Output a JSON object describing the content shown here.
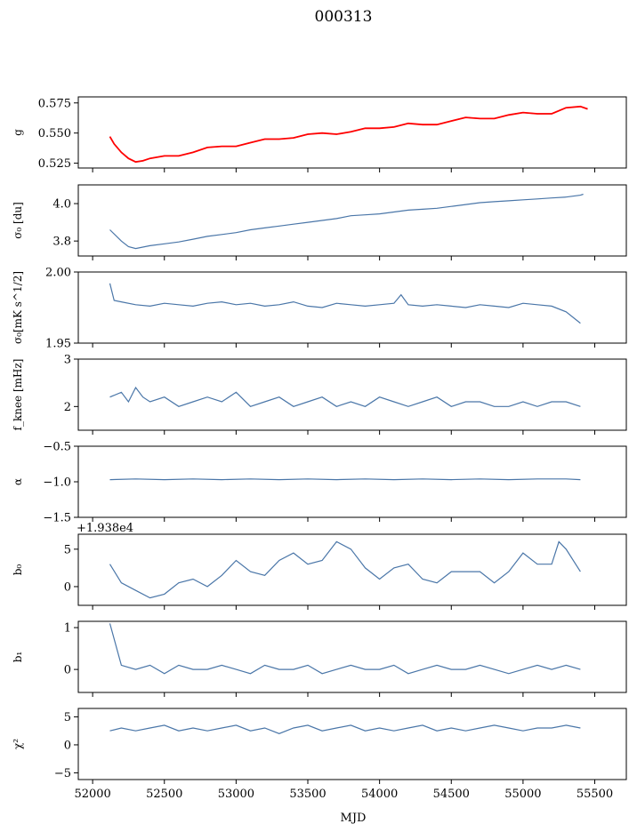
{
  "figure": {
    "title": "000313",
    "xlabel": "MJD"
  },
  "chart_data": [
    {
      "type": "line",
      "key": "g",
      "ylabel": "g",
      "ylim": [
        0.521,
        0.58
      ],
      "yticks": [
        0.525,
        0.55,
        0.575
      ],
      "ytick_labels": [
        "0.525",
        "0.550",
        "0.575"
      ],
      "series": [
        {
          "role": "model",
          "color": "#4a76a8",
          "x": [
            52120,
            52150,
            52200,
            52250,
            52300,
            52350,
            52400,
            52500,
            52600,
            52700,
            52800,
            52900,
            53000,
            53100,
            53200,
            53300,
            53400,
            53500,
            53600,
            53700,
            53800,
            53900,
            54000,
            54100,
            54200,
            54300,
            54400,
            54500,
            54600,
            54700,
            54800,
            54900,
            55000,
            55100,
            55200,
            55300,
            55400,
            55450
          ],
          "y": [
            0.547,
            0.541,
            0.534,
            0.529,
            0.526,
            0.527,
            0.529,
            0.531,
            0.531,
            0.534,
            0.538,
            0.539,
            0.539,
            0.542,
            0.545,
            0.545,
            0.546,
            0.549,
            0.55,
            0.549,
            0.551,
            0.554,
            0.554,
            0.555,
            0.558,
            0.557,
            0.557,
            0.56,
            0.563,
            0.562,
            0.562,
            0.565,
            0.567,
            0.566,
            0.566,
            0.571,
            0.572,
            0.57
          ]
        },
        {
          "role": "data",
          "color": "#ff0000",
          "x": [
            52120,
            52150,
            52200,
            52250,
            52300,
            52350,
            52400,
            52500,
            52600,
            52700,
            52800,
            52900,
            53000,
            53100,
            53200,
            53300,
            53400,
            53500,
            53600,
            53700,
            53800,
            53900,
            54000,
            54100,
            54200,
            54300,
            54400,
            54500,
            54600,
            54700,
            54800,
            54900,
            55000,
            55100,
            55200,
            55300,
            55400,
            55450
          ],
          "y": [
            0.547,
            0.541,
            0.534,
            0.529,
            0.526,
            0.527,
            0.529,
            0.531,
            0.531,
            0.534,
            0.538,
            0.539,
            0.539,
            0.542,
            0.545,
            0.545,
            0.546,
            0.549,
            0.55,
            0.549,
            0.551,
            0.554,
            0.554,
            0.555,
            0.558,
            0.557,
            0.557,
            0.56,
            0.563,
            0.562,
            0.562,
            0.565,
            0.567,
            0.566,
            0.566,
            0.571,
            0.572,
            0.57
          ]
        }
      ]
    },
    {
      "type": "line",
      "key": "sigma0_du",
      "ylabel": "σ₀ [du]",
      "ylim": [
        3.72,
        4.1
      ],
      "yticks": [
        3.8,
        4.0
      ],
      "ytick_labels": [
        "3.8",
        "4.0"
      ],
      "series": [
        {
          "color": "#4a76a8",
          "x": [
            52120,
            52200,
            52250,
            52300,
            52400,
            52500,
            52600,
            52700,
            52800,
            52900,
            53000,
            53100,
            53200,
            53300,
            53400,
            53500,
            53600,
            53700,
            53800,
            53900,
            54000,
            54100,
            54200,
            54300,
            54400,
            54500,
            54600,
            54700,
            54800,
            54900,
            55000,
            55100,
            55200,
            55300,
            55400,
            55420
          ],
          "y": [
            3.86,
            3.8,
            3.77,
            3.76,
            3.775,
            3.785,
            3.795,
            3.81,
            3.825,
            3.835,
            3.845,
            3.86,
            3.87,
            3.88,
            3.89,
            3.9,
            3.91,
            3.92,
            3.935,
            3.94,
            3.945,
            3.955,
            3.965,
            3.97,
            3.975,
            3.985,
            3.995,
            4.005,
            4.01,
            4.015,
            4.02,
            4.025,
            4.03,
            4.035,
            4.045,
            4.05
          ]
        }
      ]
    },
    {
      "type": "line",
      "key": "sigma0_mk",
      "ylabel": "σ₀[mK s^1/2]",
      "ylim": [
        1.95,
        2.0
      ],
      "yticks": [
        1.95,
        2.0
      ],
      "ytick_labels": [
        "1.95",
        "2.00"
      ],
      "series": [
        {
          "color": "#4a76a8",
          "x": [
            52120,
            52150,
            52200,
            52300,
            52400,
            52500,
            52600,
            52700,
            52800,
            52900,
            53000,
            53100,
            53200,
            53300,
            53400,
            53500,
            53600,
            53700,
            53800,
            53900,
            54000,
            54100,
            54150,
            54200,
            54300,
            54400,
            54500,
            54600,
            54700,
            54800,
            54900,
            55000,
            55100,
            55200,
            55300,
            55400
          ],
          "y": [
            1.992,
            1.98,
            1.979,
            1.977,
            1.976,
            1.978,
            1.977,
            1.976,
            1.978,
            1.979,
            1.977,
            1.978,
            1.976,
            1.977,
            1.979,
            1.976,
            1.975,
            1.978,
            1.977,
            1.976,
            1.977,
            1.978,
            1.984,
            1.977,
            1.976,
            1.977,
            1.976,
            1.975,
            1.977,
            1.976,
            1.975,
            1.978,
            1.977,
            1.976,
            1.972,
            1.964
          ]
        }
      ]
    },
    {
      "type": "line",
      "key": "fknee",
      "ylabel": "f_knee [mHz]",
      "ylim": [
        1.5,
        3.0
      ],
      "yticks": [
        2,
        3
      ],
      "ytick_labels": [
        "2",
        "3"
      ],
      "series": [
        {
          "color": "#4a76a8",
          "x": [
            52120,
            52200,
            52250,
            52300,
            52350,
            52400,
            52500,
            52600,
            52700,
            52800,
            52900,
            53000,
            53100,
            53200,
            53300,
            53400,
            53500,
            53600,
            53700,
            53800,
            53900,
            54000,
            54100,
            54200,
            54300,
            54400,
            54500,
            54600,
            54700,
            54800,
            54900,
            55000,
            55100,
            55200,
            55300,
            55400
          ],
          "y": [
            2.2,
            2.3,
            2.1,
            2.4,
            2.2,
            2.1,
            2.2,
            2.0,
            2.1,
            2.2,
            2.1,
            2.3,
            2.0,
            2.1,
            2.2,
            2.0,
            2.1,
            2.2,
            2.0,
            2.1,
            2.0,
            2.2,
            2.1,
            2.0,
            2.1,
            2.2,
            2.0,
            2.1,
            2.1,
            2.0,
            2.0,
            2.1,
            2.0,
            2.1,
            2.1,
            2.0
          ]
        }
      ]
    },
    {
      "type": "line",
      "key": "alpha",
      "ylabel": "α",
      "ylim": [
        -1.5,
        -0.5
      ],
      "yticks": [
        -1.5,
        -1.0,
        -0.5
      ],
      "ytick_labels": [
        "−1.5",
        "−1.0",
        "−0.5"
      ],
      "series": [
        {
          "color": "#4a76a8",
          "x": [
            52120,
            52300,
            52500,
            52700,
            52900,
            53100,
            53300,
            53500,
            53700,
            53900,
            54100,
            54300,
            54500,
            54700,
            54900,
            55100,
            55300,
            55400
          ],
          "y": [
            -0.97,
            -0.96,
            -0.97,
            -0.96,
            -0.97,
            -0.96,
            -0.97,
            -0.96,
            -0.97,
            -0.96,
            -0.97,
            -0.96,
            -0.97,
            -0.96,
            -0.97,
            -0.96,
            -0.96,
            -0.97
          ]
        }
      ]
    },
    {
      "type": "line",
      "key": "b0",
      "ylabel": "b₀",
      "offset_text": "+1.938e4",
      "ylim": [
        -2.5,
        7
      ],
      "yticks": [
        0,
        5
      ],
      "ytick_labels": [
        "0",
        "5"
      ],
      "series": [
        {
          "color": "#4a76a8",
          "x": [
            52120,
            52200,
            52300,
            52400,
            52500,
            52600,
            52700,
            52800,
            52900,
            53000,
            53100,
            53200,
            53300,
            53400,
            53500,
            53600,
            53700,
            53800,
            53900,
            54000,
            54100,
            54200,
            54300,
            54400,
            54500,
            54600,
            54700,
            54800,
            54900,
            55000,
            55100,
            55200,
            55250,
            55300,
            55400
          ],
          "y": [
            3.0,
            0.5,
            -0.5,
            -1.5,
            -1.0,
            0.5,
            1.0,
            0.0,
            1.5,
            3.5,
            2.0,
            1.5,
            3.5,
            4.5,
            3.0,
            3.5,
            6.0,
            5.0,
            2.5,
            1.0,
            2.5,
            3.0,
            1.0,
            0.5,
            2.0,
            2.0,
            2.0,
            0.5,
            2.0,
            4.5,
            3.0,
            3.0,
            6.0,
            5.0,
            2.0
          ]
        }
      ]
    },
    {
      "type": "line",
      "key": "b1",
      "ylabel": "b₁",
      "ylim": [
        -0.55,
        1.15
      ],
      "yticks": [
        0,
        1
      ],
      "ytick_labels": [
        "0",
        "1"
      ],
      "series": [
        {
          "color": "#4a76a8",
          "x": [
            52120,
            52200,
            52300,
            52400,
            52500,
            52600,
            52700,
            52800,
            52900,
            53000,
            53100,
            53200,
            53300,
            53400,
            53500,
            53600,
            53700,
            53800,
            53900,
            54000,
            54100,
            54200,
            54300,
            54400,
            54500,
            54600,
            54700,
            54800,
            54900,
            55000,
            55100,
            55200,
            55300,
            55400
          ],
          "y": [
            1.1,
            0.1,
            0.0,
            0.1,
            -0.1,
            0.1,
            0.0,
            0.0,
            0.1,
            0.0,
            -0.1,
            0.1,
            0.0,
            0.0,
            0.1,
            -0.1,
            0.0,
            0.1,
            0.0,
            0.0,
            0.1,
            -0.1,
            0.0,
            0.1,
            0.0,
            0.0,
            0.1,
            0.0,
            -0.1,
            0.0,
            0.1,
            0.0,
            0.1,
            0.0
          ]
        }
      ]
    },
    {
      "type": "line",
      "key": "chi2",
      "ylabel": "χ²",
      "xlim": [
        51900,
        55720
      ],
      "xticks": [
        52000,
        52500,
        53000,
        53500,
        54000,
        54500,
        55000,
        55500
      ],
      "xtick_labels": [
        "52000",
        "52500",
        "53000",
        "53500",
        "54000",
        "54500",
        "55000",
        "55500"
      ],
      "ylim": [
        -6.2,
        6.5
      ],
      "yticks": [
        -5,
        0,
        5
      ],
      "ytick_labels": [
        "−5",
        "0",
        "5"
      ],
      "series": [
        {
          "color": "#4a76a8",
          "x": [
            52120,
            52200,
            52300,
            52400,
            52500,
            52600,
            52700,
            52800,
            52900,
            53000,
            53100,
            53200,
            53300,
            53400,
            53500,
            53600,
            53700,
            53800,
            53900,
            54000,
            54100,
            54200,
            54300,
            54400,
            54500,
            54600,
            54700,
            54800,
            54900,
            55000,
            55100,
            55200,
            55300,
            55400
          ],
          "y": [
            2.5,
            3.0,
            2.5,
            3.0,
            3.5,
            2.5,
            3.0,
            2.5,
            3.0,
            3.5,
            2.5,
            3.0,
            2.0,
            3.0,
            3.5,
            2.5,
            3.0,
            3.5,
            2.5,
            3.0,
            2.5,
            3.0,
            3.5,
            2.5,
            3.0,
            2.5,
            3.0,
            3.5,
            3.0,
            2.5,
            3.0,
            3.0,
            3.5,
            3.0
          ]
        }
      ]
    }
  ]
}
